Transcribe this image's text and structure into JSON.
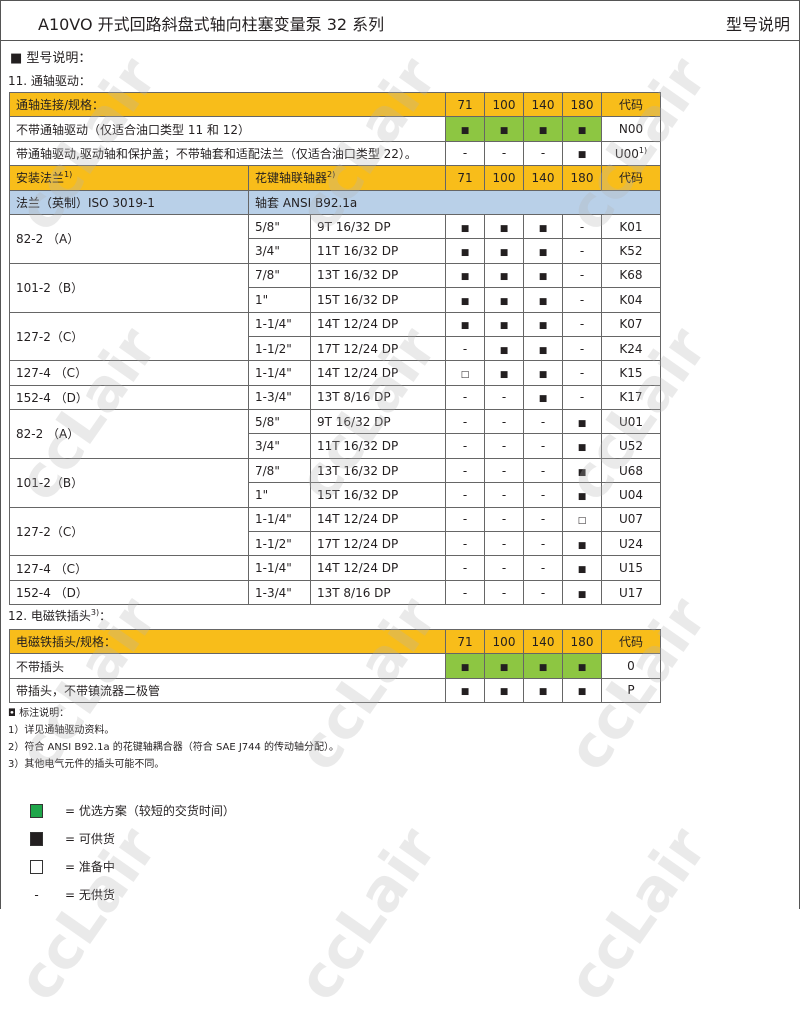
{
  "header": {
    "title": "A10VO 开式回路斜盘式轴向柱塞变量泵  32 系列",
    "right": "型号说明"
  },
  "section_title": "■  型号说明：",
  "s11": {
    "title": "11. 通轴驱动：",
    "head1": [
      "通轴连接/规格：",
      "71",
      "100",
      "140",
      "180",
      "代码"
    ],
    "top_rows": [
      {
        "label": "不带通轴驱动（仅适合油口类型 11 和 12）",
        "cells": [
          "■",
          "■",
          "■",
          "■"
        ],
        "code": "N00",
        "sup": "",
        "preferred": true
      },
      {
        "label": "带通轴驱动,驱动轴和保护盖；不带轴套和适配法兰（仅适合油口类型 22）。",
        "cells": [
          "-",
          "-",
          "-",
          "■"
        ],
        "code": "U00",
        "sup": "1)",
        "preferred": false
      }
    ],
    "head2": {
      "flange": "安装法兰",
      "flange_sup": "1)",
      "coupling": "花键轴联轴器",
      "coupling_sup": "2)",
      "sizes": [
        "71",
        "100",
        "140",
        "180"
      ],
      "code": "代码"
    },
    "blue_row": {
      "flange": "法兰（英制）ISO 3019-1",
      "coupling": "轴套 ANSI B92.1a"
    },
    "rows": [
      {
        "flange": "82-2 （A）",
        "span": 2,
        "size": "5/8\"",
        "spline": "9T 16/32 DP",
        "cells": [
          "■",
          "■",
          "■",
          "-"
        ],
        "code": "K01"
      },
      {
        "size": "3/4\"",
        "spline": "11T 16/32 DP",
        "cells": [
          "■",
          "■",
          "■",
          "-"
        ],
        "code": "K52"
      },
      {
        "flange": "101-2（B）",
        "span": 2,
        "size": "7/8\"",
        "spline": "13T 16/32 DP",
        "cells": [
          "■",
          "■",
          "■",
          "-"
        ],
        "code": "K68"
      },
      {
        "size": "1\"",
        "spline": "15T 16/32 DP",
        "cells": [
          "■",
          "■",
          "■",
          "-"
        ],
        "code": "K04"
      },
      {
        "flange": "127-2（C）",
        "span": 2,
        "size": "1-1/4\"",
        "spline": "14T 12/24 DP",
        "cells": [
          "■",
          "■",
          "■",
          "-"
        ],
        "code": "K07"
      },
      {
        "size": "1-1/2\"",
        "spline": "17T 12/24 DP",
        "cells": [
          "-",
          "■",
          "■",
          "-"
        ],
        "code": "K24"
      },
      {
        "flange": "127-4 （C）",
        "span": 1,
        "size": "1-1/4\"",
        "spline": "14T 12/24 DP",
        "cells": [
          "□",
          "■",
          "■",
          "-"
        ],
        "code": "K15"
      },
      {
        "flange": "152-4 （D）",
        "span": 1,
        "size": "1-3/4\"",
        "spline": "13T 8/16 DP",
        "cells": [
          "-",
          "-",
          "■",
          "-"
        ],
        "code": "K17"
      },
      {
        "flange": "82-2 （A）",
        "span": 2,
        "size": "5/8\"",
        "spline": "9T 16/32 DP",
        "cells": [
          "-",
          "-",
          "-",
          "■"
        ],
        "code": "U01"
      },
      {
        "size": "3/4\"",
        "spline": "11T 16/32 DP",
        "cells": [
          "-",
          "-",
          "-",
          "■"
        ],
        "code": "U52"
      },
      {
        "flange": "101-2（B）",
        "span": 2,
        "size": "7/8\"",
        "spline": "13T 16/32 DP",
        "cells": [
          "-",
          "-",
          "-",
          "■"
        ],
        "code": "U68"
      },
      {
        "size": "1\"",
        "spline": "15T 16/32 DP",
        "cells": [
          "-",
          "-",
          "-",
          "■"
        ],
        "code": "U04"
      },
      {
        "flange": "127-2（C）",
        "span": 2,
        "size": "1-1/4\"",
        "spline": "14T 12/24 DP",
        "cells": [
          "-",
          "-",
          "-",
          "□"
        ],
        "code": "U07"
      },
      {
        "size": "1-1/2\"",
        "spline": "17T 12/24 DP",
        "cells": [
          "-",
          "-",
          "-",
          "■"
        ],
        "code": "U24"
      },
      {
        "flange": "127-4 （C）",
        "span": 1,
        "size": "1-1/4\"",
        "spline": "14T 12/24 DP",
        "cells": [
          "-",
          "-",
          "-",
          "■"
        ],
        "code": "U15"
      },
      {
        "flange": "152-4 （D）",
        "span": 1,
        "size": "1-3/4\"",
        "spline": "13T 8/16 DP",
        "cells": [
          "-",
          "-",
          "-",
          "■"
        ],
        "code": "U17"
      }
    ]
  },
  "s12": {
    "title": "12. 电磁铁插头",
    "title_sup": "3)",
    "title_end": "：",
    "head": [
      "电磁铁插头/规格：",
      "71",
      "100",
      "140",
      "180",
      "代码"
    ],
    "rows": [
      {
        "label": "不带插头",
        "cells": [
          "■",
          "■",
          "■",
          "■"
        ],
        "code": "0",
        "preferred": true
      },
      {
        "label": "带插头，不带镇流器二极管",
        "cells": [
          "■",
          "■",
          "■",
          "■"
        ],
        "code": "P",
        "preferred": false
      }
    ]
  },
  "notes": {
    "title": "◘  标注说明：",
    "items": [
      "1）详见通轴驱动资料。",
      "2）符合 ANSI B92.1a 的花键轴耦合器（符合 SAE J744 的传动轴分配）。",
      "3）其他电气元件的插头可能不同。"
    ]
  },
  "legend": [
    {
      "symbol": "green-square",
      "color": "#1fa64a",
      "text": "=  优选方案（较短的交货时间）"
    },
    {
      "symbol": "black-square",
      "color": "#231f20",
      "text": "=  可供货"
    },
    {
      "symbol": "empty-square",
      "color": "#ffffff",
      "text": "=  准备中"
    },
    {
      "symbol": "-",
      "color": "",
      "text": "=  无供货"
    }
  ],
  "colors": {
    "header_yellow": "#f8bd1a",
    "flange_blue": "#b9d0e8",
    "preferred_green": "#8dc642"
  },
  "watermark": "ccLair"
}
